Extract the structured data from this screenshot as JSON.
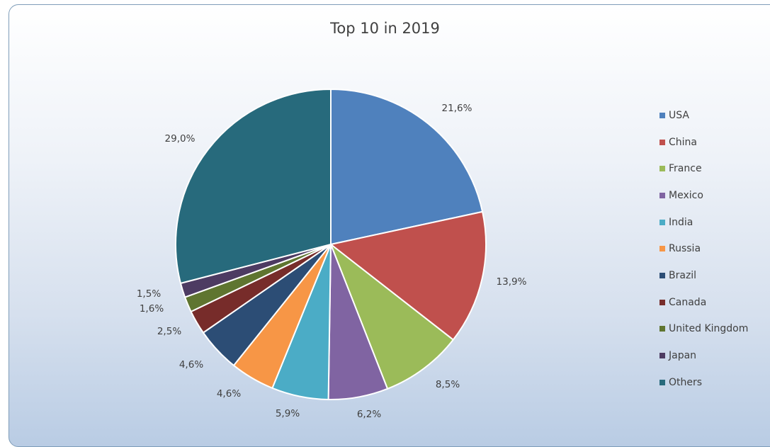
{
  "chart_data": {
    "type": "pie",
    "title": "Top 10 in 2019",
    "legend_position": "right",
    "start_angle_deg": 0,
    "direction": "clockwise",
    "slices": [
      {
        "name": "USA",
        "value": 21.6,
        "label": "21,6%",
        "color": "#4f81bd"
      },
      {
        "name": "China",
        "value": 13.9,
        "label": "13,9%",
        "color": "#c0504d"
      },
      {
        "name": "France",
        "value": 8.5,
        "label": "8,5%",
        "color": "#9bbb59"
      },
      {
        "name": "Mexico",
        "value": 6.2,
        "label": "6,2%",
        "color": "#8064a2"
      },
      {
        "name": "India",
        "value": 5.9,
        "label": "5,9%",
        "color": "#4bacc6"
      },
      {
        "name": "Russia",
        "value": 4.6,
        "label": "4,6%",
        "color": "#f79646"
      },
      {
        "name": "Brazil",
        "value": 4.6,
        "label": "4,6%",
        "color": "#2c4d75"
      },
      {
        "name": "Canada",
        "value": 2.5,
        "label": "2,5%",
        "color": "#772c2a"
      },
      {
        "name": "United Kingdom",
        "value": 1.6,
        "label": "1,6%",
        "color": "#5f7530"
      },
      {
        "name": "Japan",
        "value": 1.5,
        "label": "1,5%",
        "color": "#4d3b62"
      },
      {
        "name": "Others",
        "value": 29.0,
        "label": "29,0%",
        "color": "#276a7c"
      }
    ]
  }
}
